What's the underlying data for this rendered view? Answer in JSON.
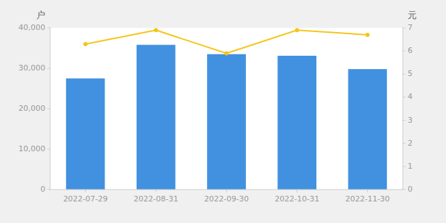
{
  "chart_data": {
    "type": "bar",
    "categories": [
      "2022-07-29",
      "2022-08-31",
      "2022-09-30",
      "2022-10-31",
      "2022-11-30"
    ],
    "series": [
      {
        "type": "bar",
        "color": "#4191E0",
        "values": [
          27500,
          35800,
          33500,
          33100,
          29800
        ]
      },
      {
        "type": "line",
        "axis": "y2",
        "color": "#F5C518",
        "marker": "circle",
        "values": [
          6.3,
          6.9,
          5.9,
          6.9,
          6.7
        ]
      }
    ],
    "ylabel": "户",
    "y2label": "元",
    "ylim": [
      0,
      40000
    ],
    "yticks": [
      0,
      {
        "value": 10000,
        "label": "10,000"
      },
      {
        "value": 20000,
        "label": "20,000"
      },
      {
        "value": 30000,
        "label": "30,000"
      },
      {
        "value": 40000,
        "label": "40,000"
      }
    ],
    "y2lim": [
      0,
      7
    ],
    "y2ticks": [
      0,
      1,
      2,
      3,
      4,
      5,
      6,
      7
    ],
    "grid": false
  }
}
